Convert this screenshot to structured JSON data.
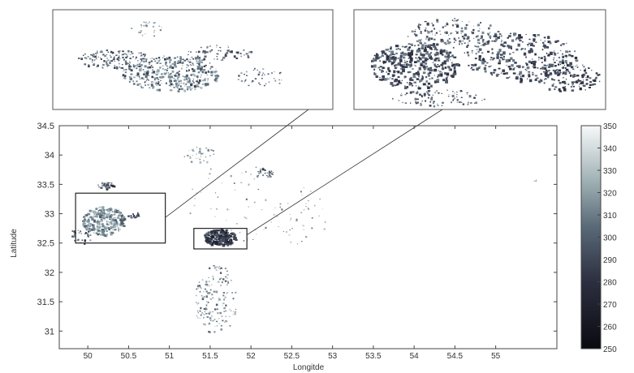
{
  "map": {
    "xlabel": "Longitde",
    "ylabel": "Latitude",
    "xlim": [
      49.65,
      55.75
    ],
    "ylim": [
      30.7,
      34.5
    ],
    "x_ticks": [
      {
        "v": 50,
        "label": "50"
      },
      {
        "v": 50.5,
        "label": "50.5"
      },
      {
        "v": 51,
        "label": "51"
      },
      {
        "v": 51.5,
        "label": "51.5"
      },
      {
        "v": 52,
        "label": "52"
      },
      {
        "v": 52.5,
        "label": "52.5"
      },
      {
        "v": 53,
        "label": "53"
      },
      {
        "v": 53.5,
        "label": "53.5"
      },
      {
        "v": 54,
        "label": "54"
      },
      {
        "v": 54.5,
        "label": "54.5"
      },
      {
        "v": 55,
        "label": "55"
      }
    ],
    "y_ticks": [
      {
        "v": 31,
        "label": "31"
      },
      {
        "v": 31.5,
        "label": "31.5"
      },
      {
        "v": 32,
        "label": "32"
      },
      {
        "v": 32.5,
        "label": "32.5"
      },
      {
        "v": 33,
        "label": "33"
      },
      {
        "v": 33.5,
        "label": "33.5"
      },
      {
        "v": 34,
        "label": "34"
      },
      {
        "v": 34.5,
        "label": "34.5"
      }
    ],
    "zoom_boxes": [
      {
        "name": "zoom-box-left",
        "lon": [
          49.85,
          50.95
        ],
        "lat": [
          32.5,
          33.35
        ]
      },
      {
        "name": "zoom-box-right",
        "lon": [
          51.3,
          51.95
        ],
        "lat": [
          32.4,
          32.75
        ]
      }
    ],
    "colorbar": {
      "min": 250,
      "max": 350,
      "ticks": [
        "250",
        "260",
        "270",
        "280",
        "290",
        "300",
        "310",
        "320",
        "330",
        "340",
        "350"
      ],
      "color_low": "#0a0a10",
      "color_mid": "#5a6a78",
      "color_high": "#f7f9fa"
    }
  }
}
